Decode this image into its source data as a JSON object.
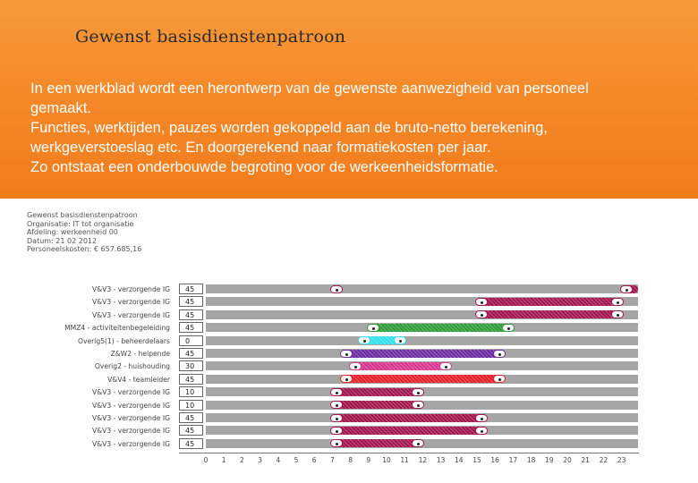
{
  "slide": {
    "title": "Gewenst basisdienstenpatroon",
    "body_lines": [
      "In een werkblad wordt een herontwerp van de gewenste aanwezigheid van personeel",
      "gemaakt.",
      "Functies, werktijden, pauzes worden gekoppeld aan de bruto-netto berekening,",
      "werkgeverstoeslag etc.  En doorgerekend naar formatiekosten per jaar.",
      "Zo ontstaat een onderbouwde begroting voor de werkeenheidsformatie."
    ]
  },
  "meta_lines": [
    "Gewenst basisdienstenpatroon",
    "Organisatie: IT tot organisatie",
    "Afdeling: werkeenheid 00",
    "Datum: 21 02 2012",
    "Personeelskosten: € 657.685,16"
  ],
  "axis_ticks": [
    "0",
    "1",
    "2",
    "3",
    "4",
    "5",
    "6",
    "7",
    "8",
    "9",
    "10",
    "11",
    "12",
    "13",
    "14",
    "15",
    "16",
    "17",
    "18",
    "19",
    "20",
    "21",
    "22",
    "23"
  ],
  "colors": {
    "banner": "#f5892a",
    "track": "#a6a6a6",
    "maroon": "#a3174f",
    "green": "#2d9e3a",
    "cyan": "#36e0ea",
    "purple": "#6d2ca0",
    "pink": "#d8378e",
    "red": "#e3222a"
  },
  "rows": [
    {
      "label": "V&V3 - verzorgende IG",
      "count": "45",
      "segments": [
        {
          "start": 7.0,
          "end": 7.5,
          "color": "maroon"
        },
        {
          "start": 23.0,
          "end": 24.0,
          "color": "maroon"
        }
      ]
    },
    {
      "label": "V&V3 - verzorgende IG",
      "count": "45",
      "segments": [
        {
          "start": 15.0,
          "end": 23.0,
          "color": "maroon"
        }
      ]
    },
    {
      "label": "V&V3 - verzorgende IG",
      "count": "45",
      "segments": [
        {
          "start": 15.0,
          "end": 23.0,
          "color": "maroon"
        }
      ]
    },
    {
      "label": "MMZ4 - activiteitenbegeleiding",
      "count": "45",
      "segments": [
        {
          "start": 9.0,
          "end": 17.0,
          "color": "green"
        }
      ]
    },
    {
      "label": "Overig5(1) - beheerdelaars",
      "count": "0",
      "segments": [
        {
          "start": 8.5,
          "end": 11.0,
          "color": "cyan"
        }
      ]
    },
    {
      "label": "Z&W2 - helpende",
      "count": "45",
      "segments": [
        {
          "start": 7.5,
          "end": 16.5,
          "color": "purple"
        }
      ]
    },
    {
      "label": "Overig2 - huishouding",
      "count": "30",
      "segments": [
        {
          "start": 8.0,
          "end": 13.5,
          "color": "pink"
        }
      ]
    },
    {
      "label": "V&V4 - teamleider",
      "count": "45",
      "segments": [
        {
          "start": 7.5,
          "end": 16.5,
          "color": "red"
        }
      ]
    },
    {
      "label": "V&V3 - verzorgende IG",
      "count": "10",
      "segments": [
        {
          "start": 7.0,
          "end": 12.0,
          "color": "maroon"
        }
      ]
    },
    {
      "label": "V&V3 - verzorgende IG",
      "count": "10",
      "segments": [
        {
          "start": 7.0,
          "end": 12.0,
          "color": "maroon"
        }
      ]
    },
    {
      "label": "V&V3 - verzorgende IG",
      "count": "45",
      "segments": [
        {
          "start": 7.0,
          "end": 15.5,
          "color": "maroon"
        }
      ]
    },
    {
      "label": "V&V3 - verzorgende IG",
      "count": "45",
      "segments": [
        {
          "start": 7.0,
          "end": 15.5,
          "color": "maroon"
        }
      ]
    },
    {
      "label": "V&V3 - verzorgende IG",
      "count": "45",
      "segments": [
        {
          "start": 7.0,
          "end": 12.0,
          "color": "maroon"
        }
      ]
    }
  ]
}
